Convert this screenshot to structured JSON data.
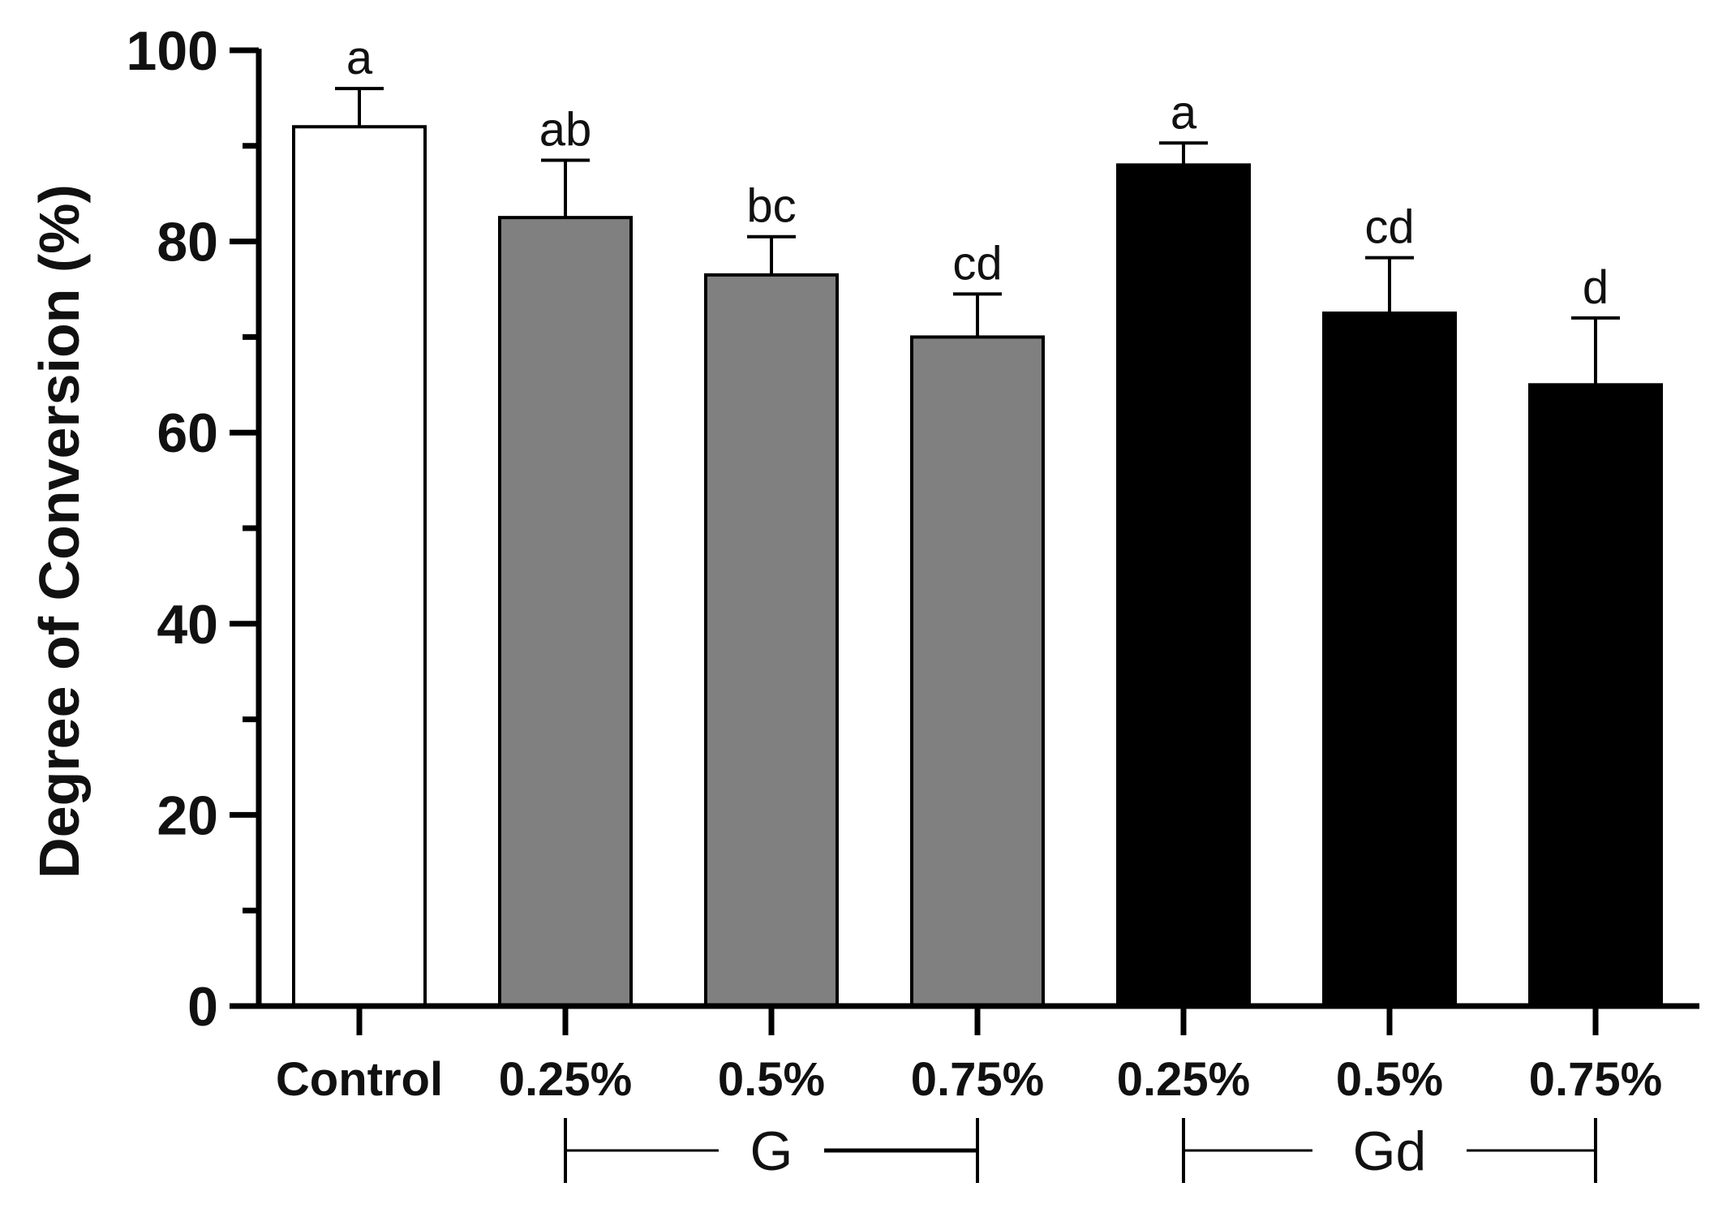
{
  "chart_data": {
    "type": "bar",
    "title": "",
    "xlabel": "",
    "ylabel": "Degree of Conversion (%)",
    "ylim": [
      0,
      100
    ],
    "yticks": [
      0,
      20,
      40,
      60,
      80,
      100
    ],
    "grid": false,
    "legend": "none",
    "categories": [
      "Control",
      "0.25%",
      "0.5%",
      "0.75%",
      "0.25%",
      "0.5%",
      "0.75%"
    ],
    "values": [
      92,
      82.5,
      76.5,
      70,
      88,
      72.5,
      65
    ],
    "errors": [
      4,
      6,
      4,
      4.5,
      2.3,
      5.8,
      7
    ],
    "significance": [
      "a",
      "ab",
      "bc",
      "cd",
      "a",
      "cd",
      "d"
    ],
    "bar_colors": [
      "#ffffff",
      "#808080",
      "#808080",
      "#808080",
      "#000000",
      "#000000",
      "#000000"
    ],
    "groups": [
      {
        "label": "G",
        "start_index": 1,
        "end_index": 3
      },
      {
        "label": "Gd",
        "start_index": 4,
        "end_index": 6
      }
    ]
  }
}
